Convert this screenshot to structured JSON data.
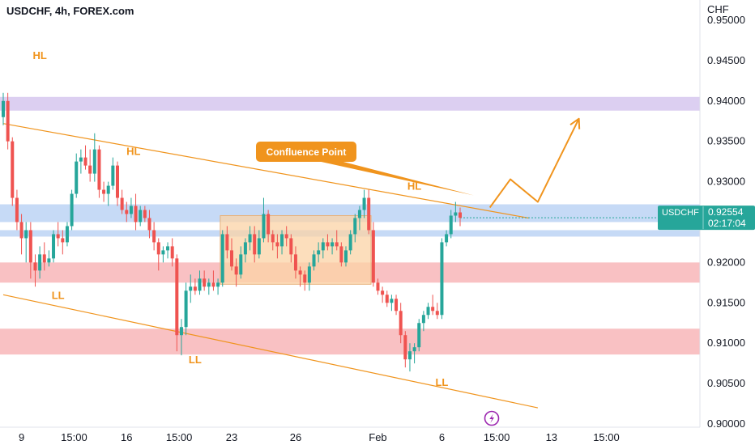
{
  "header": {
    "title": "USDCHF, 4h, FOREX.com"
  },
  "colors": {
    "up": "#26a69a",
    "down": "#ef5350",
    "accent": "#f0941d",
    "blue_zone": "#bcd3f5",
    "red_zone": "#f8b6b9",
    "purple_zone": "#d6c7ee",
    "orange_zone": "#fbd3a6"
  },
  "chart_data": {
    "type": "candlestick",
    "currency_label": "CHF",
    "ylim": [
      0.8996,
      0.9525
    ],
    "y_ticks": [
      {
        "value": 0.95,
        "label": "0.95000"
      },
      {
        "value": 0.945,
        "label": "0.94500"
      },
      {
        "value": 0.94,
        "label": "0.94000"
      },
      {
        "value": 0.935,
        "label": "0.93500"
      },
      {
        "value": 0.93,
        "label": "0.93000"
      },
      {
        "value": 0.92,
        "label": "0.92000"
      },
      {
        "value": 0.915,
        "label": "0.91500"
      },
      {
        "value": 0.91,
        "label": "0.91000"
      },
      {
        "value": 0.905,
        "label": "0.90500"
      },
      {
        "value": 0.9,
        "label": "0.90000"
      }
    ],
    "x_ticks": [
      {
        "bar": 4,
        "label": "9"
      },
      {
        "bar": 15.5,
        "label": "15:00"
      },
      {
        "bar": 27,
        "label": "16"
      },
      {
        "bar": 38.5,
        "label": "15:00"
      },
      {
        "bar": 50,
        "label": "23"
      },
      {
        "bar": 64,
        "label": "26"
      },
      {
        "bar": 82,
        "label": "Feb"
      },
      {
        "bar": 96,
        "label": "6"
      },
      {
        "bar": 108,
        "label": "15:00"
      },
      {
        "bar": 120,
        "label": "13"
      },
      {
        "bar": 132,
        "label": "15:00"
      }
    ],
    "current_price": {
      "symbol": "USDCHF",
      "value": 0.92554,
      "label": "0.92554",
      "countdown": "02:17:04"
    },
    "ohlc": [
      [
        0.938,
        0.941,
        0.937,
        0.94
      ],
      [
        0.94,
        0.941,
        0.934,
        0.935
      ],
      [
        0.935,
        0.9355,
        0.927,
        0.928
      ],
      [
        0.928,
        0.929,
        0.924,
        0.925
      ],
      [
        0.925,
        0.926,
        0.921,
        0.923
      ],
      [
        0.923,
        0.925,
        0.92,
        0.924
      ],
      [
        0.924,
        0.925,
        0.918,
        0.92
      ],
      [
        0.92,
        0.921,
        0.917,
        0.919
      ],
      [
        0.919,
        0.922,
        0.918,
        0.921
      ],
      [
        0.921,
        0.9225,
        0.919,
        0.92
      ],
      [
        0.92,
        0.9215,
        0.9195,
        0.9205
      ],
      [
        0.9205,
        0.924,
        0.92,
        0.9235
      ],
      [
        0.9235,
        0.925,
        0.922,
        0.923
      ],
      [
        0.923,
        0.924,
        0.921,
        0.9225
      ],
      [
        0.9225,
        0.925,
        0.922,
        0.9245
      ],
      [
        0.9245,
        0.929,
        0.924,
        0.9285
      ],
      [
        0.9285,
        0.9335,
        0.928,
        0.9325
      ],
      [
        0.9325,
        0.934,
        0.931,
        0.933
      ],
      [
        0.933,
        0.9345,
        0.9315,
        0.932
      ],
      [
        0.932,
        0.934,
        0.93,
        0.931
      ],
      [
        0.931,
        0.936,
        0.93,
        0.934
      ],
      [
        0.934,
        0.9345,
        0.928,
        0.929
      ],
      [
        0.929,
        0.93,
        0.9275,
        0.9285
      ],
      [
        0.9285,
        0.93,
        0.927,
        0.9295
      ],
      [
        0.9295,
        0.933,
        0.929,
        0.932
      ],
      [
        0.932,
        0.9325,
        0.927,
        0.928
      ],
      [
        0.928,
        0.929,
        0.926,
        0.9265
      ],
      [
        0.9265,
        0.9275,
        0.925,
        0.926
      ],
      [
        0.926,
        0.928,
        0.9255,
        0.927
      ],
      [
        0.927,
        0.9285,
        0.924,
        0.925
      ],
      [
        0.925,
        0.927,
        0.9245,
        0.9265
      ],
      [
        0.9265,
        0.927,
        0.925,
        0.9255
      ],
      [
        0.9255,
        0.9265,
        0.923,
        0.924
      ],
      [
        0.924,
        0.925,
        0.9215,
        0.9225
      ],
      [
        0.9225,
        0.923,
        0.919,
        0.921
      ],
      [
        0.921,
        0.922,
        0.92,
        0.9215
      ],
      [
        0.9215,
        0.9225,
        0.9205,
        0.922
      ],
      [
        0.922,
        0.923,
        0.9195,
        0.9205
      ],
      [
        0.9205,
        0.921,
        0.909,
        0.911
      ],
      [
        0.911,
        0.913,
        0.9085,
        0.912
      ],
      [
        0.912,
        0.9175,
        0.911,
        0.9165
      ],
      [
        0.9165,
        0.9185,
        0.915,
        0.917
      ],
      [
        0.917,
        0.918,
        0.916,
        0.9165
      ],
      [
        0.9165,
        0.919,
        0.916,
        0.918
      ],
      [
        0.918,
        0.919,
        0.9165,
        0.917
      ],
      [
        0.917,
        0.918,
        0.916,
        0.9175
      ],
      [
        0.9175,
        0.919,
        0.9165,
        0.917
      ],
      [
        0.917,
        0.918,
        0.916,
        0.9175
      ],
      [
        0.9175,
        0.924,
        0.917,
        0.9235
      ],
      [
        0.9235,
        0.9245,
        0.9205,
        0.9215
      ],
      [
        0.9215,
        0.923,
        0.919,
        0.9195
      ],
      [
        0.9195,
        0.9205,
        0.917,
        0.9185
      ],
      [
        0.9185,
        0.922,
        0.918,
        0.921
      ],
      [
        0.921,
        0.923,
        0.92,
        0.9225
      ],
      [
        0.9225,
        0.9245,
        0.9215,
        0.9235
      ],
      [
        0.9235,
        0.9245,
        0.92,
        0.921
      ],
      [
        0.921,
        0.924,
        0.9205,
        0.923
      ],
      [
        0.923,
        0.928,
        0.9225,
        0.926
      ],
      [
        0.926,
        0.9265,
        0.9225,
        0.9235
      ],
      [
        0.9235,
        0.924,
        0.9215,
        0.9225
      ],
      [
        0.9225,
        0.9235,
        0.9205,
        0.922
      ],
      [
        0.922,
        0.924,
        0.921,
        0.9235
      ],
      [
        0.9235,
        0.9245,
        0.922,
        0.923
      ],
      [
        0.923,
        0.9235,
        0.92,
        0.921
      ],
      [
        0.921,
        0.922,
        0.918,
        0.919
      ],
      [
        0.919,
        0.9195,
        0.917,
        0.9185
      ],
      [
        0.9185,
        0.919,
        0.9165,
        0.9175
      ],
      [
        0.9175,
        0.92,
        0.9165,
        0.9195
      ],
      [
        0.9195,
        0.9215,
        0.919,
        0.921
      ],
      [
        0.921,
        0.9225,
        0.92,
        0.9215
      ],
      [
        0.9215,
        0.923,
        0.9205,
        0.9225
      ],
      [
        0.9225,
        0.9235,
        0.9215,
        0.922
      ],
      [
        0.922,
        0.923,
        0.921,
        0.9225
      ],
      [
        0.9225,
        0.924,
        0.9215,
        0.922
      ],
      [
        0.922,
        0.9225,
        0.9195,
        0.92
      ],
      [
        0.92,
        0.922,
        0.9195,
        0.9215
      ],
      [
        0.9215,
        0.924,
        0.921,
        0.9235
      ],
      [
        0.9235,
        0.926,
        0.9225,
        0.9255
      ],
      [
        0.9255,
        0.927,
        0.924,
        0.9265
      ],
      [
        0.9265,
        0.929,
        0.9255,
        0.928
      ],
      [
        0.928,
        0.929,
        0.9235,
        0.924
      ],
      [
        0.924,
        0.925,
        0.917,
        0.9175
      ],
      [
        0.9175,
        0.918,
        0.916,
        0.9165
      ],
      [
        0.9165,
        0.917,
        0.915,
        0.916
      ],
      [
        0.916,
        0.9165,
        0.9145,
        0.915
      ],
      [
        0.915,
        0.916,
        0.914,
        0.9155
      ],
      [
        0.9155,
        0.916,
        0.9135,
        0.914
      ],
      [
        0.914,
        0.915,
        0.91,
        0.911
      ],
      [
        0.911,
        0.9115,
        0.907,
        0.908
      ],
      [
        0.908,
        0.91,
        0.9065,
        0.909
      ],
      [
        0.909,
        0.91,
        0.9075,
        0.9095
      ],
      [
        0.9095,
        0.913,
        0.909,
        0.9125
      ],
      [
        0.9125,
        0.914,
        0.9115,
        0.9135
      ],
      [
        0.9135,
        0.915,
        0.913,
        0.9145
      ],
      [
        0.9145,
        0.916,
        0.9135,
        0.914
      ],
      [
        0.914,
        0.915,
        0.913,
        0.9135
      ],
      [
        0.9135,
        0.923,
        0.913,
        0.9225
      ],
      [
        0.9225,
        0.924,
        0.922,
        0.9235
      ],
      [
        0.9235,
        0.9265,
        0.923,
        0.9258
      ],
      [
        0.9258,
        0.9275,
        0.925,
        0.9262
      ],
      [
        0.9262,
        0.9268,
        0.9245,
        0.92554
      ]
    ],
    "zones": [
      {
        "name": "purple-resistance-zone",
        "y1": 0.9388,
        "y2": 0.9405,
        "color": "#d6c7ee"
      },
      {
        "name": "blue-resistance-zone",
        "y1": 0.925,
        "y2": 0.9272,
        "color": "#bcd3f5"
      },
      {
        "name": "blue-support-band",
        "y1": 0.9232,
        "y2": 0.924,
        "color": "#bcd3f5"
      },
      {
        "name": "red-support-zone-upper",
        "y1": 0.9175,
        "y2": 0.92,
        "color": "#f8b6b9"
      },
      {
        "name": "red-support-zone-lower",
        "y1": 0.9086,
        "y2": 0.9118,
        "color": "#f8b6b9"
      }
    ],
    "range_box": {
      "bar1": 47.5,
      "bar2": 80.5,
      "y1": 0.9173,
      "y2": 0.9258,
      "color": "#fbd3a6"
    },
    "trendlines": [
      {
        "name": "upper-trendline",
        "bar1": 0,
        "y1": 0.9372,
        "bar2": 115,
        "y2": 0.9255
      },
      {
        "name": "lower-trendline",
        "bar1": 0,
        "y1": 0.916,
        "bar2": 117,
        "y2": 0.902
      }
    ],
    "projection": [
      {
        "bar": 106.5,
        "y": 0.9268
      },
      {
        "bar": 111,
        "y": 0.9303
      },
      {
        "bar": 117,
        "y": 0.9275
      },
      {
        "bar": 126,
        "y": 0.9378
      }
    ],
    "callout": {
      "text": "Confluence Point",
      "tip_bar": 103,
      "tip_y": 0.9283
    },
    "labels": [
      {
        "text": "HL",
        "bar": 8,
        "y": 0.9452
      },
      {
        "text": "HL",
        "bar": 28.5,
        "y": 0.9333
      },
      {
        "text": "HL",
        "bar": 90,
        "y": 0.929
      },
      {
        "text": "LL",
        "bar": 12,
        "y": 0.9155
      },
      {
        "text": "LL",
        "bar": 42,
        "y": 0.9075
      },
      {
        "text": "LL",
        "bar": 96,
        "y": 0.9047
      }
    ]
  }
}
